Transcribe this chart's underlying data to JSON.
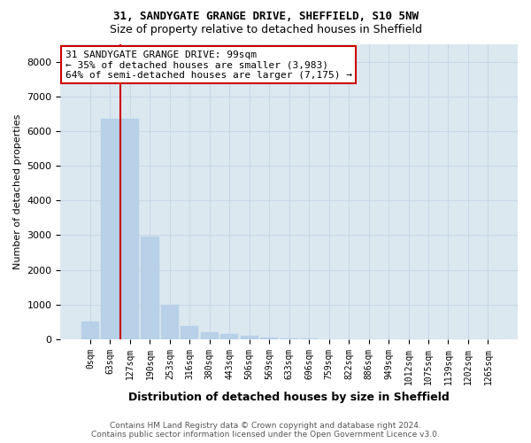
{
  "title1": "31, SANDYGATE GRANGE DRIVE, SHEFFIELD, S10 5NW",
  "title2": "Size of property relative to detached houses in Sheffield",
  "xlabel": "Distribution of detached houses by size in Sheffield",
  "ylabel": "Number of detached properties",
  "categories": [
    "0sqm",
    "63sqm",
    "127sqm",
    "190sqm",
    "253sqm",
    "316sqm",
    "380sqm",
    "443sqm",
    "506sqm",
    "569sqm",
    "633sqm",
    "696sqm",
    "759sqm",
    "822sqm",
    "886sqm",
    "949sqm",
    "1012sqm",
    "1075sqm",
    "1139sqm",
    "1202sqm",
    "1265sqm"
  ],
  "bar_heights": [
    500,
    6350,
    6350,
    2950,
    1000,
    380,
    200,
    150,
    90,
    50,
    25,
    15,
    8,
    5,
    3,
    2,
    2,
    1,
    1,
    1,
    1
  ],
  "bar_color": "#b8d0e8",
  "bar_edge_color": "#b8d0e8",
  "vline_x_index": 1.5,
  "vline_color": "#cc0000",
  "annotation_line1": "31 SANDYGATE GRANGE DRIVE: 99sqm",
  "annotation_line2": "← 35% of detached houses are smaller (3,983)",
  "annotation_line3": "64% of semi-detached houses are larger (7,175) →",
  "annotation_box_color": "#ffffff",
  "annotation_box_edge_color": "#cc0000",
  "ylim": [
    0,
    8500
  ],
  "yticks": [
    0,
    1000,
    2000,
    3000,
    4000,
    5000,
    6000,
    7000,
    8000
  ],
  "footer": "Contains HM Land Registry data © Crown copyright and database right 2024.\nContains public sector information licensed under the Open Government Licence v3.0.",
  "grid_color": "#c8d8e8",
  "bg_color": "#dce8f0"
}
